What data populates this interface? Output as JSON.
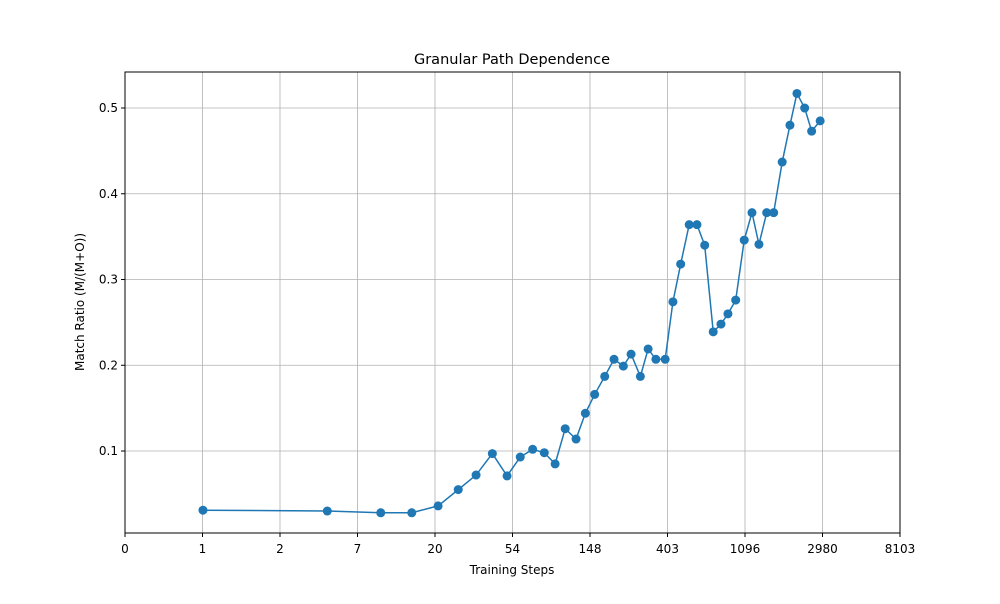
{
  "chart_data": {
    "type": "line",
    "title": "Granular Path Dependence",
    "xlabel": "Training Steps",
    "ylabel": "Match Ratio (M/(M+O))",
    "x": [
      1.006,
      2.61,
      3.3,
      3.7,
      4.04,
      4.3,
      4.53,
      4.74,
      4.93,
      5.1,
      5.26,
      5.41,
      5.55,
      5.68,
      5.82,
      5.94,
      6.06,
      6.19,
      6.31,
      6.43,
      6.53,
      6.65,
      6.75,
      6.85,
      6.97,
      7.07,
      7.17,
      7.28,
      7.38,
      7.48,
      7.59,
      7.69,
      7.78,
      7.88,
      7.99,
      8.09,
      8.18,
      8.28,
      8.37,
      8.48,
      8.58,
      8.67,
      8.77,
      8.86,
      8.97
    ],
    "series": [
      {
        "color": "#1f77b4",
        "values": [
          0.031,
          0.03,
          0.028,
          0.028,
          0.036,
          0.055,
          0.072,
          0.097,
          0.071,
          0.093,
          0.102,
          0.098,
          0.085,
          0.126,
          0.114,
          0.144,
          0.166,
          0.187,
          0.207,
          0.199,
          0.213,
          0.187,
          0.219,
          0.207,
          0.207,
          0.274,
          0.318,
          0.364,
          0.364,
          0.34,
          0.239,
          0.248,
          0.26,
          0.276,
          0.346,
          0.378,
          0.341,
          0.378,
          0.378,
          0.437,
          0.48,
          0.517,
          0.5,
          0.473,
          0.485
        ]
      }
    ],
    "xlim": [
      0,
      10
    ],
    "xticks": [
      0,
      1,
      {
        "value": 2,
        "label": "2"
      },
      {
        "value": 3,
        "label": "7"
      },
      {
        "value": 4,
        "label": "20"
      },
      {
        "value": 5,
        "label": "54"
      },
      {
        "value": 6,
        "label": "148"
      },
      {
        "value": 7,
        "label": "403"
      },
      {
        "value": 8,
        "label": "1096"
      },
      {
        "value": 9,
        "label": "2980"
      },
      {
        "value": 10,
        "label": "8103"
      }
    ],
    "ylim": [
      0.0044,
      0.542
    ],
    "yticks": [
      0.1,
      0.2,
      0.3,
      0.4,
      0.5
    ],
    "grid": true
  }
}
